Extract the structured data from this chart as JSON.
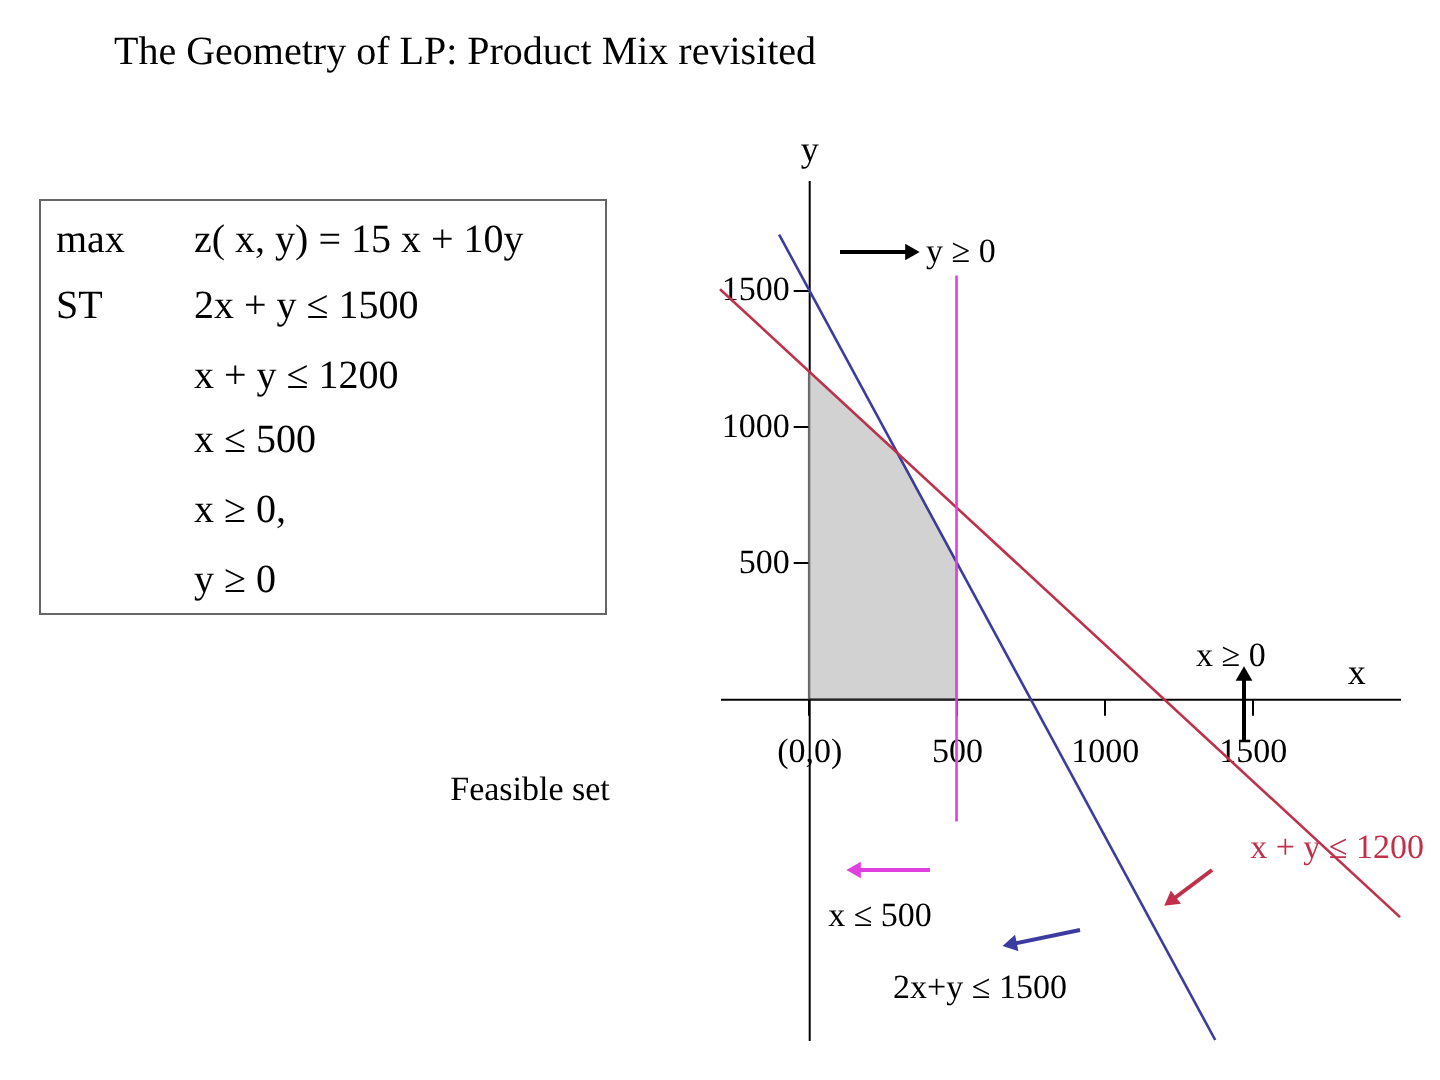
{
  "chart_data": {
    "type": "line",
    "title": "The Geometry of LP: Product Mix revisited",
    "xlabel": "x",
    "ylabel": "y",
    "xlim": [
      -300,
      2000
    ],
    "ylim": [
      -1250,
      1900
    ],
    "xticks": [
      {
        "value": 0,
        "label": "(0,0)"
      },
      500,
      1000,
      1500
    ],
    "yticks": [
      500,
      1000,
      1500
    ],
    "grid": false,
    "legend": false,
    "series": [
      {
        "type": "area",
        "color": "#c8c8c8",
        "x": [
          0,
          300,
          500
        ],
        "values": [
          1200,
          900,
          500
        ]
      },
      {
        "color": "#3c3ca0",
        "x": [
          -100,
          1375
        ],
        "values": [
          1700,
          -1250
        ]
      },
      {
        "color": "#c0304a",
        "x": [
          -300,
          2000
        ],
        "values": [
          1500,
          -800
        ]
      },
      {
        "color": "#e040e0",
        "x": [
          500,
          500
        ],
        "values": [
          1550,
          -450
        ]
      }
    ],
    "annotations": [
      "max",
      "ST",
      "z( x, y) = 15 x + 10y",
      "2x + y ≤ 1500",
      "x + y ≤ 1200",
      "x ≤ 500",
      "x ≥ 0,",
      "y ≥ 0",
      "Feasible set",
      "y ≥ 0",
      "x ≥ 0",
      "x + y ≤ 1200",
      "x ≤ 500",
      "2x+y ≤ 1500"
    ]
  }
}
